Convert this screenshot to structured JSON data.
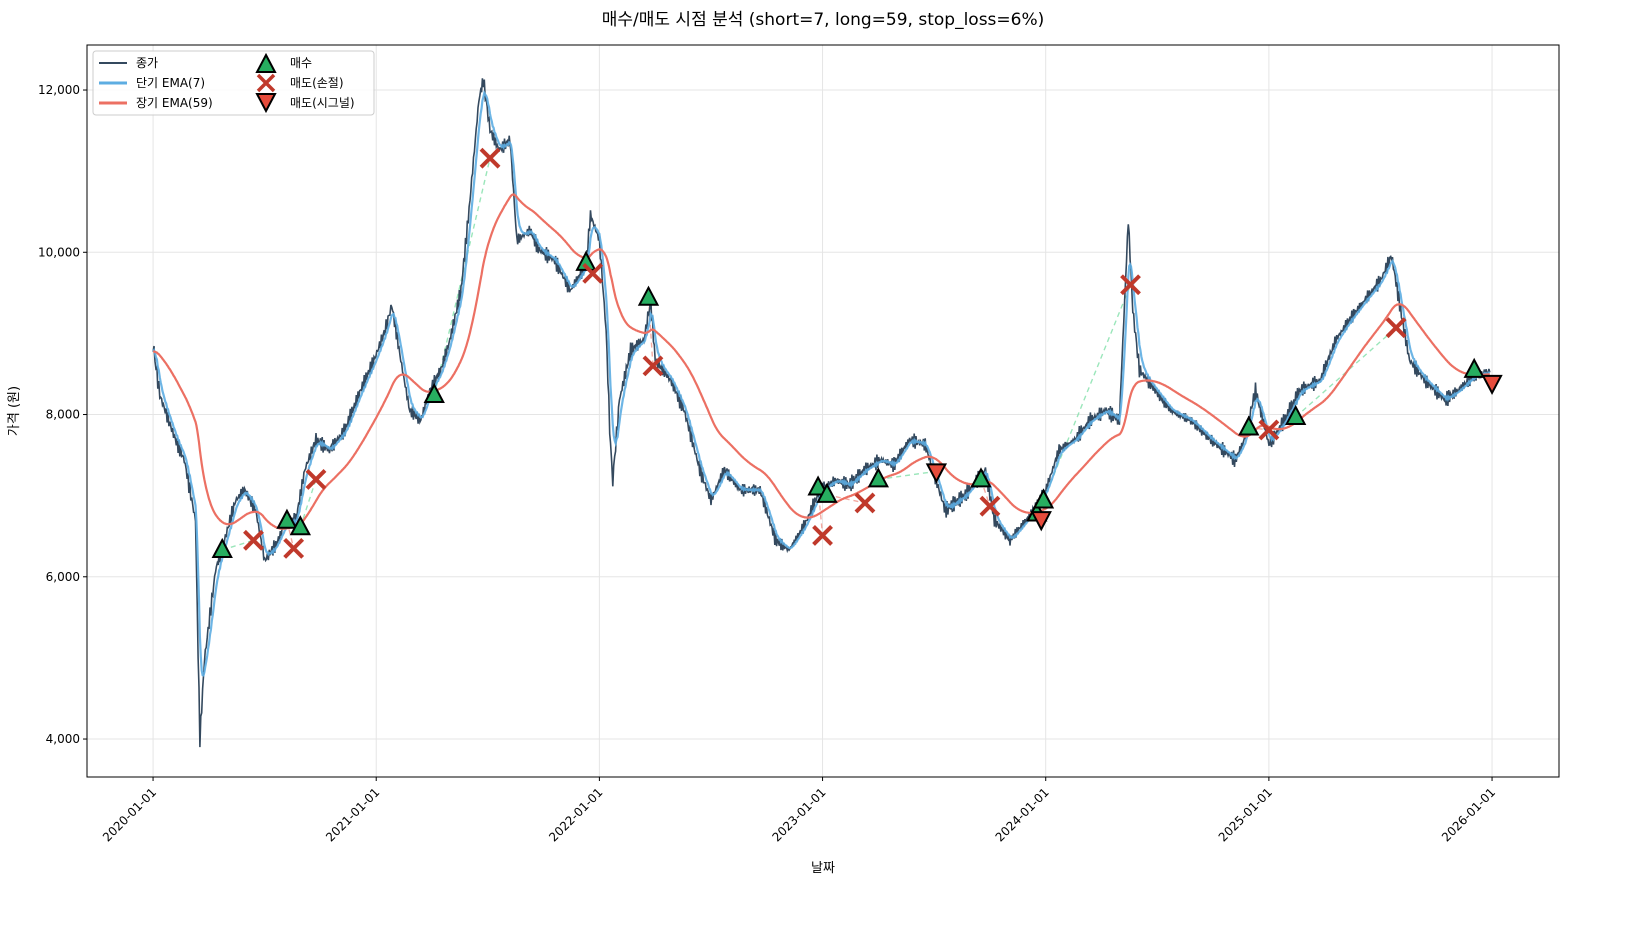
{
  "chart_data": {
    "type": "line",
    "title": "매수/매도 시점 분석 (short=7, long=59, stop_loss=6%)",
    "xlabel": "날짜",
    "ylabel": "가격 (원)",
    "xlim": [
      2019.704,
      2026.3
    ],
    "ylim": [
      3532,
      12555
    ],
    "grid": true,
    "legend_position": "top-left",
    "yticks": [
      4000,
      6000,
      8000,
      10000,
      12000
    ],
    "ytick_labels": [
      "4,000",
      "6,000",
      "8,000",
      "10,000",
      "12,000"
    ],
    "xticks": [
      2020,
      2021,
      2022,
      2023,
      2024,
      2025,
      2026
    ],
    "xtick_labels": [
      "2020-01-01",
      "2021-01-01",
      "2022-01-01",
      "2023-01-01",
      "2024-01-01",
      "2025-01-01",
      "2026-01-01"
    ],
    "legend": {
      "close": "종가",
      "short_ema": "단기 EMA(7)",
      "long_ema": "장기 EMA(59)",
      "buy": "매수",
      "sell_stop": "매도(손절)",
      "sell_signal": "매도(시그널)"
    },
    "colors": {
      "close": "#34495e",
      "short_ema": "#5dade2",
      "long_ema": "#ec7063",
      "buy": "#27ae60",
      "sell_stop": "#c0392b",
      "sell_signal": "#e74c3c",
      "trade_win": "#82e0aa",
      "trade_loss": "#f1948a"
    },
    "short_span": 7,
    "long_span": 59,
    "close": {
      "x": [
        2020.0,
        2020.03,
        2020.1,
        2020.14,
        2020.19,
        2020.21,
        2020.23,
        2020.28,
        2020.32,
        2020.37,
        2020.41,
        2020.46,
        2020.5,
        2020.55,
        2020.59,
        2020.64,
        2020.68,
        2020.73,
        2020.79,
        2020.86,
        2020.93,
        2020.99,
        2021.04,
        2021.07,
        2021.11,
        2021.15,
        2021.2,
        2021.24,
        2021.29,
        2021.33,
        2021.38,
        2021.42,
        2021.46,
        2021.48,
        2021.51,
        2021.55,
        2021.6,
        2021.63,
        2021.69,
        2021.73,
        2021.8,
        2021.87,
        2021.94,
        2021.96,
        2022.0,
        2022.03,
        2022.05,
        2022.06,
        2022.09,
        2022.14,
        2022.2,
        2022.23,
        2022.25,
        2022.32,
        2022.38,
        2022.45,
        2022.5,
        2022.56,
        2022.63,
        2022.72,
        2022.79,
        2022.85,
        2022.92,
        2022.99,
        2023.06,
        2023.12,
        2023.19,
        2023.26,
        2023.32,
        2023.39,
        2023.46,
        2023.55,
        2023.64,
        2023.73,
        2023.77,
        2023.84,
        2023.93,
        2024.0,
        2024.06,
        2024.13,
        2024.2,
        2024.27,
        2024.33,
        2024.37,
        2024.39,
        2024.42,
        2024.49,
        2024.56,
        2024.65,
        2024.74,
        2024.85,
        2024.89,
        2024.94,
        2025.0,
        2025.07,
        2025.14,
        2025.23,
        2025.3,
        2025.36,
        2025.43,
        2025.5,
        2025.55,
        2025.59,
        2025.63,
        2025.7,
        2025.79,
        2025.85,
        2025.92,
        2025.99
      ],
      "y": [
        8860,
        8240,
        7690,
        7440,
        6700,
        4000,
        4970,
        6080,
        6450,
        6940,
        7070,
        6820,
        6200,
        6390,
        6640,
        6700,
        7320,
        7690,
        7560,
        7810,
        8300,
        8670,
        9040,
        9350,
        8670,
        8050,
        7930,
        8300,
        8550,
        8920,
        9530,
        10640,
        11880,
        12120,
        11510,
        11260,
        11380,
        10150,
        10270,
        10030,
        9900,
        9530,
        9840,
        10460,
        10150,
        9040,
        7560,
        7190,
        8180,
        8790,
        8920,
        9410,
        8670,
        8420,
        8050,
        7320,
        6940,
        7320,
        7070,
        7070,
        6450,
        6330,
        6640,
        7070,
        7190,
        7130,
        7320,
        7440,
        7380,
        7690,
        7630,
        6820,
        7010,
        7320,
        6700,
        6450,
        6760,
        7070,
        7560,
        7690,
        7930,
        8050,
        7930,
        10400,
        9290,
        8550,
        8300,
        8050,
        7930,
        7690,
        7440,
        7690,
        8300,
        7630,
        7930,
        8300,
        8420,
        8920,
        9160,
        9410,
        9650,
        9960,
        9290,
        8670,
        8420,
        8180,
        8300,
        8480,
        8520
      ]
    },
    "buys": {
      "x": [
        2020.31,
        2020.6,
        2020.66,
        2021.26,
        2021.94,
        2022.22,
        2022.98,
        2023.02,
        2023.25,
        2023.71,
        2023.96,
        2023.99,
        2024.91,
        2025.12,
        2025.92
      ],
      "y": [
        6330,
        6690,
        6610,
        8240,
        9870,
        9440,
        7100,
        7010,
        7200,
        7200,
        6780,
        6940,
        7840,
        7970,
        8550
      ]
    },
    "sells_stop": {
      "x": [
        2020.45,
        2020.63,
        2020.73,
        2021.51,
        2021.97,
        2022.24,
        2023.0,
        2023.19,
        2023.75,
        2024.38,
        2025.0,
        2025.57
      ],
      "y": [
        6450,
        6350,
        7200,
        11160,
        9740,
        8600,
        6510,
        6910,
        6870,
        9600,
        7810,
        9070
      ]
    },
    "sells_signal": {
      "x": [
        2023.51,
        2023.98,
        2026.0
      ],
      "y": [
        7300,
        6710,
        8390
      ]
    }
  }
}
